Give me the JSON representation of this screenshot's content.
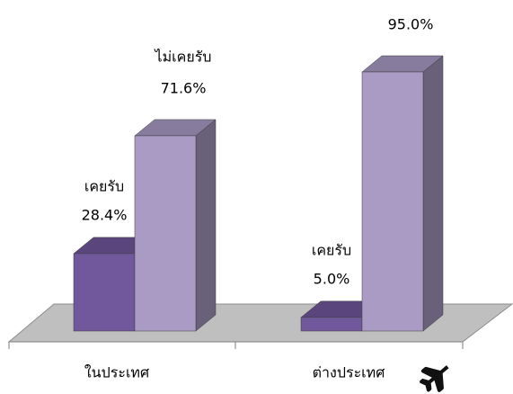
{
  "chart_data": {
    "type": "bar3d",
    "categories": [
      "ในประเทศ",
      "ต่างประเทศ"
    ],
    "series": [
      {
        "name": "เคยรับ",
        "color": "#71589c",
        "values": [
          28.4,
          5.0
        ],
        "value_labels": [
          "28.4%",
          "5.0%"
        ]
      },
      {
        "name": "ไม่เคยรับ",
        "color": "#a99bc4",
        "values": [
          71.6,
          95.0
        ],
        "value_labels": [
          "71.6%",
          "95.0%"
        ]
      }
    ]
  }
}
